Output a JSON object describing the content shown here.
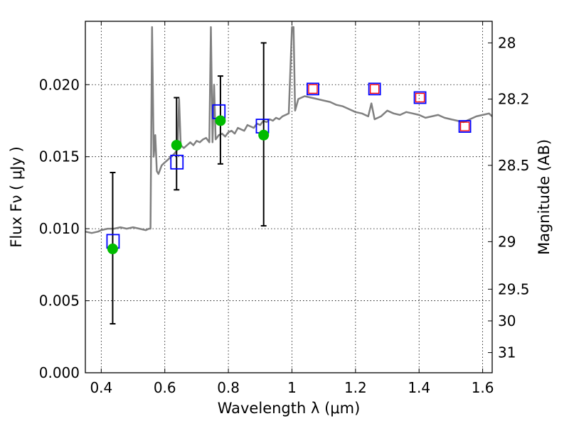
{
  "chart_data": {
    "type": "scatter",
    "title": "",
    "xlabel": "Wavelength  λ (μm)",
    "ylabel": "Flux  Fν  ( μJy )",
    "y2label": "Magnitude (AB)",
    "xlim": [
      0.35,
      1.63
    ],
    "ylim": [
      0.0,
      0.0244
    ],
    "grid": true,
    "x_ticks": [
      0.4,
      0.6,
      0.8,
      1.0,
      1.2,
      1.4,
      1.6
    ],
    "x_tick_labels": [
      "0.4",
      "0.6",
      "0.8",
      "1",
      "1.2",
      "1.4",
      "1.6"
    ],
    "y_ticks": [
      0.0,
      0.005,
      0.01,
      0.015,
      0.02
    ],
    "y_tick_labels": [
      "0.000",
      "0.005",
      "0.010",
      "0.015",
      "0.020"
    ],
    "y2_ticks": [
      {
        "label": "28",
        "flux": 0.0229
      },
      {
        "label": "28.2",
        "flux": 0.019
      },
      {
        "label": "28.5",
        "flux": 0.0144
      },
      {
        "label": "29",
        "flux": 0.0091
      },
      {
        "label": "29.5",
        "flux": 0.0058
      },
      {
        "label": "30",
        "flux": 0.0036
      },
      {
        "label": "31",
        "flux": 0.0014
      }
    ],
    "series": [
      {
        "kind": "spectrum",
        "color": "#808080",
        "x": [
          0.35,
          0.37,
          0.39,
          0.4,
          0.42,
          0.44,
          0.46,
          0.48,
          0.5,
          0.52,
          0.54,
          0.55,
          0.555,
          0.56,
          0.565,
          0.57,
          0.575,
          0.58,
          0.59,
          0.6,
          0.61,
          0.62,
          0.63,
          0.64,
          0.645,
          0.65,
          0.66,
          0.67,
          0.68,
          0.69,
          0.7,
          0.71,
          0.72,
          0.73,
          0.74,
          0.745,
          0.75,
          0.755,
          0.76,
          0.77,
          0.78,
          0.79,
          0.8,
          0.81,
          0.82,
          0.83,
          0.84,
          0.85,
          0.86,
          0.87,
          0.88,
          0.89,
          0.9,
          0.91,
          0.92,
          0.93,
          0.94,
          0.95,
          0.96,
          0.97,
          0.98,
          0.99,
          1.0,
          1.005,
          1.01,
          1.02,
          1.04,
          1.06,
          1.08,
          1.1,
          1.12,
          1.14,
          1.16,
          1.18,
          1.2,
          1.22,
          1.24,
          1.25,
          1.26,
          1.28,
          1.3,
          1.32,
          1.34,
          1.36,
          1.38,
          1.4,
          1.42,
          1.44,
          1.46,
          1.48,
          1.5,
          1.52,
          1.54,
          1.56,
          1.58,
          1.6,
          1.62,
          1.63
        ],
        "y": [
          0.0098,
          0.0097,
          0.0098,
          0.0099,
          0.01,
          0.01,
          0.0101,
          0.01,
          0.0101,
          0.01,
          0.0099,
          0.01,
          0.01,
          0.024,
          0.015,
          0.0165,
          0.014,
          0.0138,
          0.0144,
          0.0146,
          0.0148,
          0.015,
          0.0152,
          0.0155,
          0.019,
          0.0158,
          0.0156,
          0.0158,
          0.016,
          0.0158,
          0.0161,
          0.016,
          0.0162,
          0.0163,
          0.016,
          0.024,
          0.016,
          0.02,
          0.0162,
          0.0165,
          0.0166,
          0.0164,
          0.0167,
          0.0168,
          0.0166,
          0.017,
          0.0169,
          0.0168,
          0.0172,
          0.0171,
          0.017,
          0.0173,
          0.0172,
          0.0175,
          0.0174,
          0.0176,
          0.0175,
          0.0177,
          0.0176,
          0.0178,
          0.0179,
          0.018,
          0.024,
          0.024,
          0.0182,
          0.019,
          0.0192,
          0.0191,
          0.019,
          0.0189,
          0.0188,
          0.0186,
          0.0185,
          0.0183,
          0.0181,
          0.018,
          0.0178,
          0.0187,
          0.0176,
          0.0178,
          0.0182,
          0.018,
          0.0179,
          0.0181,
          0.018,
          0.0179,
          0.0177,
          0.0178,
          0.0179,
          0.0177,
          0.0176,
          0.0175,
          0.0174,
          0.0176,
          0.0178,
          0.0179,
          0.018,
          0.0178
        ]
      },
      {
        "kind": "squares",
        "name": "",
        "color": "#0000ff",
        "x": [
          0.436,
          0.637,
          0.769,
          0.906
        ],
        "y": [
          0.0091,
          0.0146,
          0.0181,
          0.0171
        ]
      },
      {
        "kind": "squares",
        "name": "",
        "color": "#ff0000",
        "outline": "#0000ff",
        "x": [
          1.066,
          1.26,
          1.403,
          1.544
        ],
        "y": [
          0.0197,
          0.0197,
          0.0191,
          0.0171
        ]
      },
      {
        "kind": "points",
        "name": "",
        "color": "#00bb00",
        "x": [
          0.436,
          0.637,
          0.775,
          0.911
        ],
        "y": [
          0.0086,
          0.0158,
          0.0175,
          0.0165
        ],
        "err_low": [
          0.0034,
          0.0127,
          0.0145,
          0.0102
        ],
        "err_high": [
          0.0139,
          0.0191,
          0.0206,
          0.0229
        ]
      }
    ]
  }
}
